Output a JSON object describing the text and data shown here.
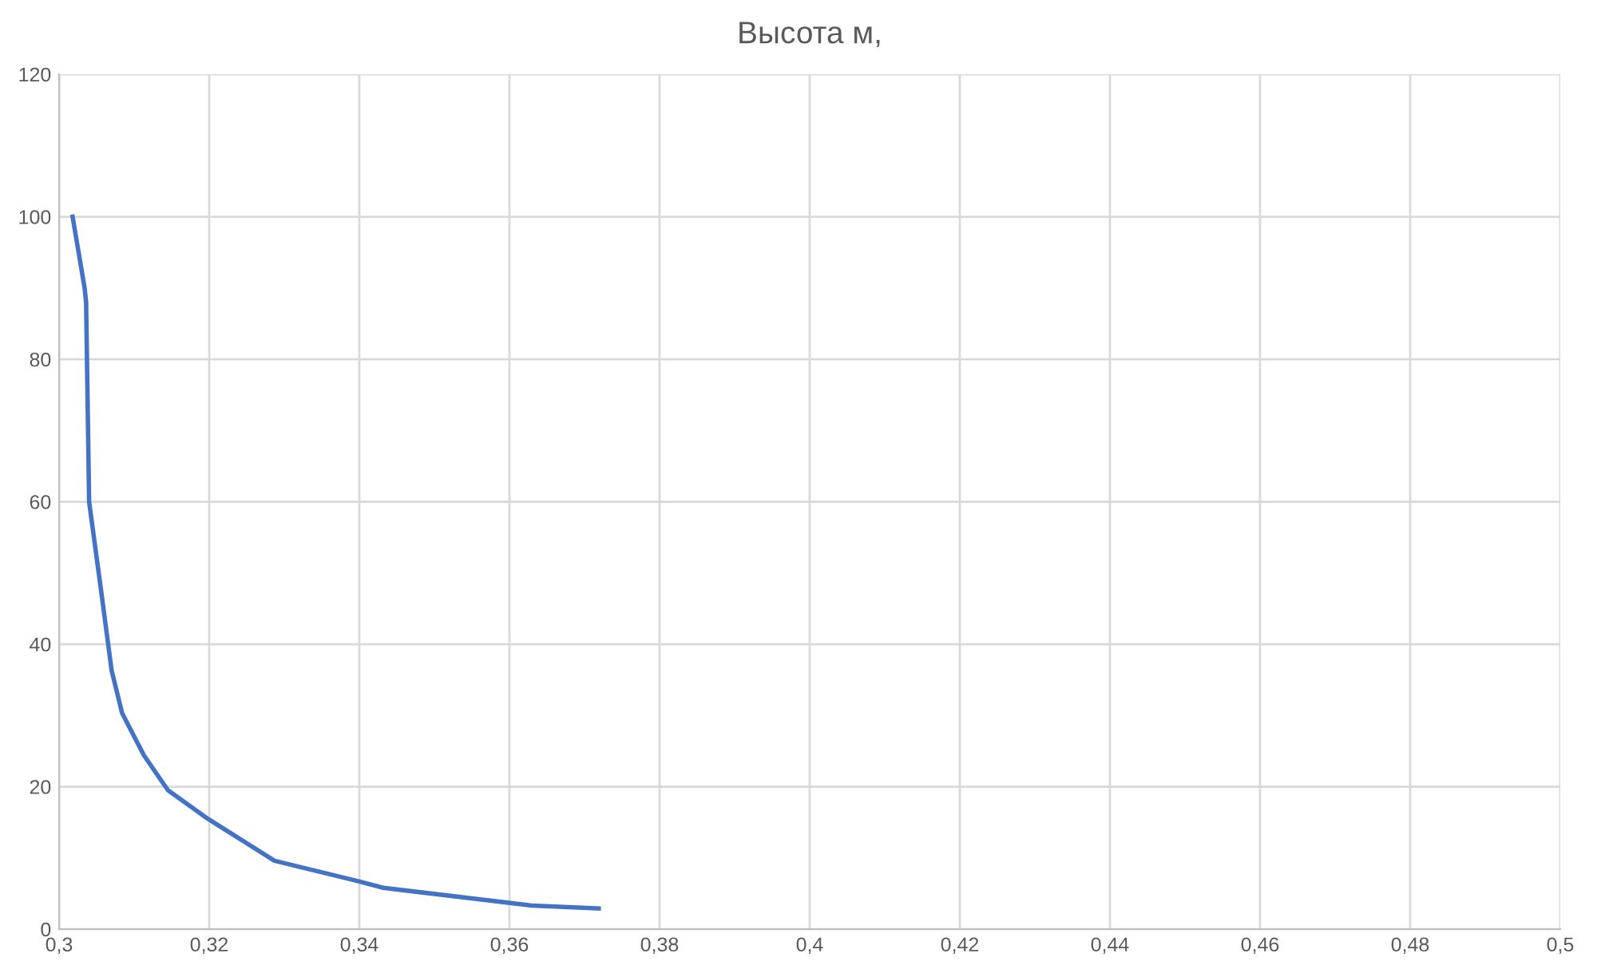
{
  "chart_data": {
    "type": "line",
    "title": "Высота м,",
    "series": [
      {
        "color": "#4472c4",
        "x": [
          0.3018,
          0.3034,
          0.3036,
          0.304,
          0.3056,
          0.307,
          0.3084,
          0.3113,
          0.3145,
          0.3198,
          0.3287,
          0.3396,
          0.3432,
          0.363,
          0.3719
        ],
        "values": [
          100,
          90,
          88,
          60,
          47.5,
          36.3,
          30.3,
          24.4,
          19.5,
          15.5,
          9.6,
          6.8,
          5.8,
          3.3,
          2.9
        ]
      }
    ],
    "xlim": [
      0.3,
      0.5
    ],
    "xticks": [
      {
        "value": 0.3,
        "label": "0,3"
      },
      {
        "value": 0.32,
        "label": "0,32"
      },
      {
        "value": 0.34,
        "label": "0,34"
      },
      {
        "value": 0.36,
        "label": "0,36"
      },
      {
        "value": 0.38,
        "label": "0,38"
      },
      {
        "value": 0.4,
        "label": "0,4"
      },
      {
        "value": 0.42,
        "label": "0,42"
      },
      {
        "value": 0.44,
        "label": "0,44"
      },
      {
        "value": 0.46,
        "label": "0,46"
      },
      {
        "value": 0.48,
        "label": "0,48"
      },
      {
        "value": 0.5,
        "label": "0,5"
      }
    ],
    "ylim": [
      0,
      120
    ],
    "yticks": [
      0,
      20,
      40,
      60,
      80,
      100,
      120
    ],
    "grid": true,
    "marker": "none",
    "line_style": "solid"
  }
}
